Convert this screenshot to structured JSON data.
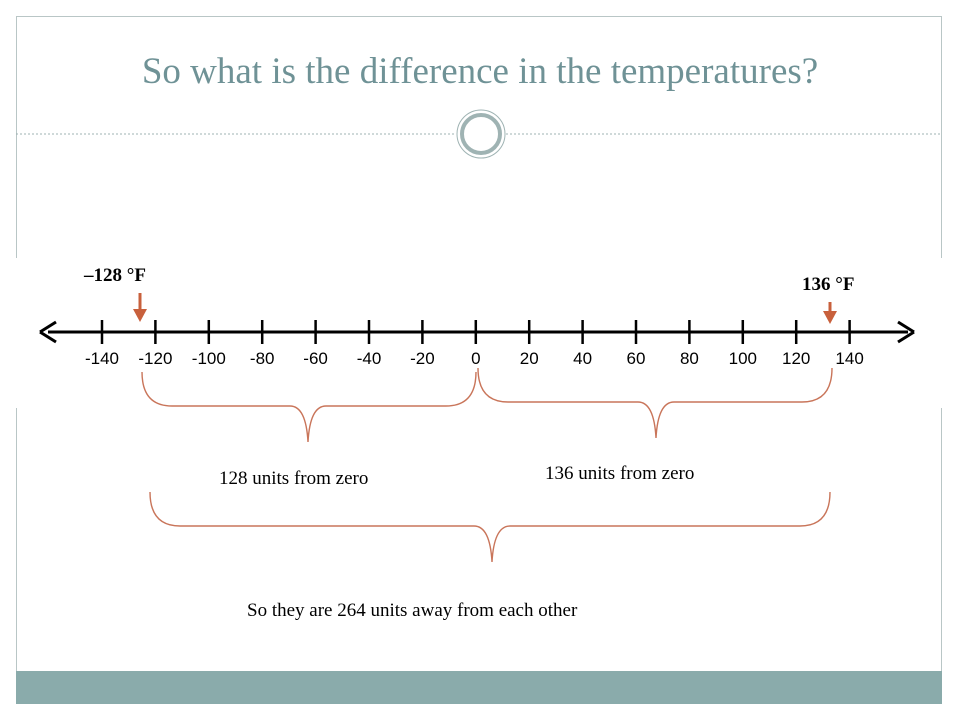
{
  "slide": {
    "title": "So what is the difference in the temperatures?"
  },
  "number_line": {
    "ticks": [
      "-140",
      "-120",
      "-100",
      "-80",
      "-60",
      "-40",
      "-20",
      "0",
      "20",
      "40",
      "60",
      "80",
      "100",
      "120",
      "140"
    ],
    "markers": [
      {
        "value": -128,
        "label": "–128 °F"
      },
      {
        "value": 136,
        "label": "136 °F"
      }
    ]
  },
  "braces": {
    "left_caption": "128 units from zero",
    "right_caption": "136 units from zero",
    "total_caption": "So they are 264 units away from each other"
  },
  "colors": {
    "title": "#6f9296",
    "accent_band": "#8aabab",
    "marker_arrow": "#c8603c",
    "brace": "#c9755a"
  }
}
